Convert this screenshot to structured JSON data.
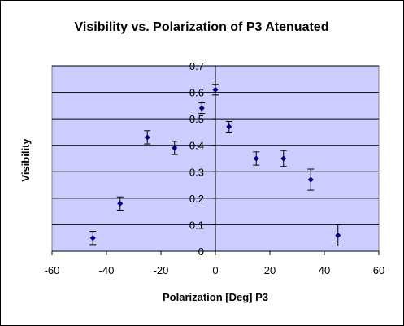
{
  "chart_data": {
    "type": "scatter",
    "title": "Visibility vs. Polarization of P3 Atenuated",
    "xlabel": "Polarization [Deg] P3",
    "ylabel": "Visibility",
    "xlim": [
      -60,
      60
    ],
    "ylim": [
      0,
      0.7
    ],
    "x_ticks": [
      "-60",
      "-40",
      "-20",
      "0",
      "20",
      "40",
      "60"
    ],
    "y_ticks": [
      "0",
      "0.1",
      "0.2",
      "0.3",
      "0.4",
      "0.5",
      "0.6",
      "0.7"
    ],
    "grid": "horizontal",
    "plot_background": "#ccccff",
    "marker_color": "#000080",
    "error_bars": true,
    "points": [
      {
        "x": -45,
        "y": 0.05,
        "err": 0.025
      },
      {
        "x": -35,
        "y": 0.18,
        "err": 0.025
      },
      {
        "x": -25,
        "y": 0.43,
        "err": 0.025
      },
      {
        "x": -15,
        "y": 0.39,
        "err": 0.025
      },
      {
        "x": -5,
        "y": 0.54,
        "err": 0.02
      },
      {
        "x": 0,
        "y": 0.61,
        "err": 0.02
      },
      {
        "x": 5,
        "y": 0.47,
        "err": 0.02
      },
      {
        "x": 15,
        "y": 0.35,
        "err": 0.025
      },
      {
        "x": 25,
        "y": 0.35,
        "err": 0.03
      },
      {
        "x": 35,
        "y": 0.27,
        "err": 0.04
      },
      {
        "x": 45,
        "y": 0.06,
        "err": 0.04
      }
    ]
  }
}
